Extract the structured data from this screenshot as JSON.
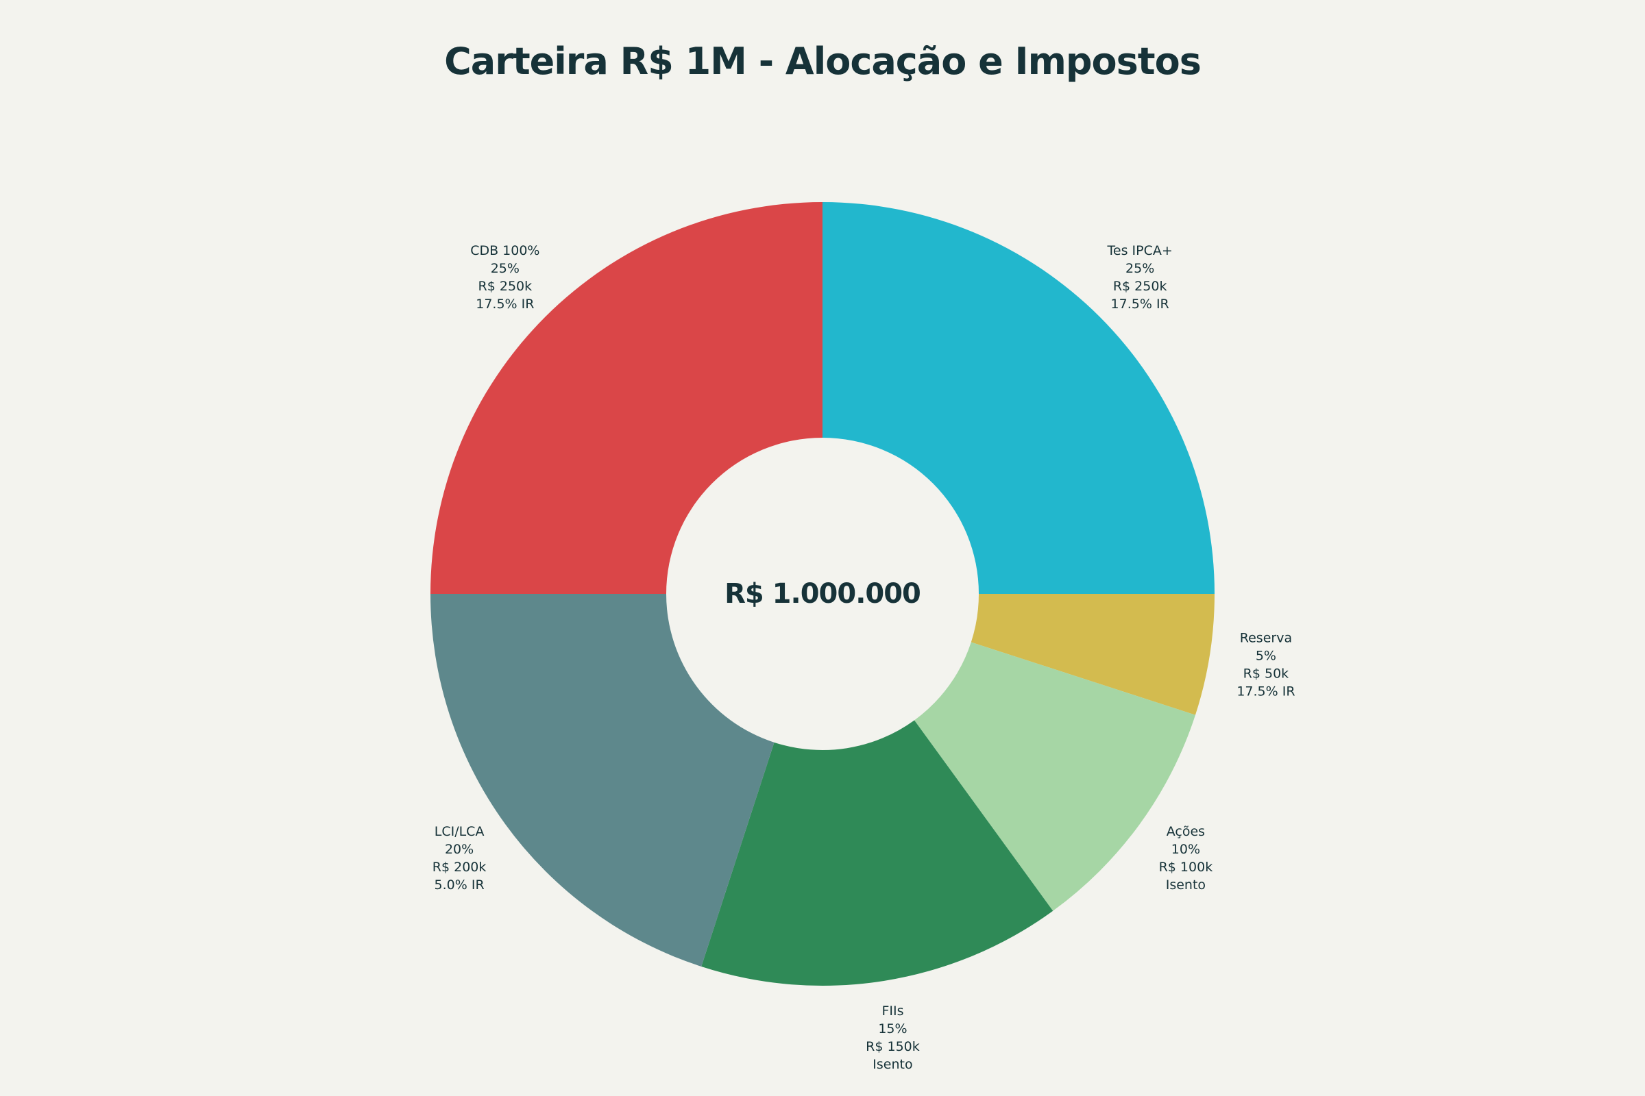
{
  "chart_data": {
    "type": "pie",
    "title": "Carteira R$ 1M - Alocação e Impostos",
    "center_text": "R$ 1.000.000",
    "hole": true,
    "slices": [
      {
        "name": "Tes IPCA+",
        "value": 25,
        "percent_label": "25%",
        "amount_label": "R$ 250k",
        "tax_label": "17.5% IR",
        "color": "#22b7cd"
      },
      {
        "name": "Reserva",
        "value": 5,
        "percent_label": "5%",
        "amount_label": "R$ 50k",
        "tax_label": "17.5% IR",
        "color": "#d3bb4f"
      },
      {
        "name": "Ações",
        "value": 10,
        "percent_label": "10%",
        "amount_label": "R$ 100k",
        "tax_label": "Isento",
        "color": "#a6d6a5"
      },
      {
        "name": "FIIs",
        "value": 15,
        "percent_label": "15%",
        "amount_label": "R$ 150k",
        "tax_label": "Isento",
        "color": "#2f8a57"
      },
      {
        "name": "LCI/LCA",
        "value": 20,
        "percent_label": "20%",
        "amount_label": "R$ 200k",
        "tax_label": "5.0% IR",
        "color": "#5e888c"
      },
      {
        "name": "CDB 100%",
        "value": 25,
        "percent_label": "25%",
        "amount_label": "R$ 250k",
        "tax_label": "17.5% IR",
        "color": "#da4648"
      }
    ]
  }
}
